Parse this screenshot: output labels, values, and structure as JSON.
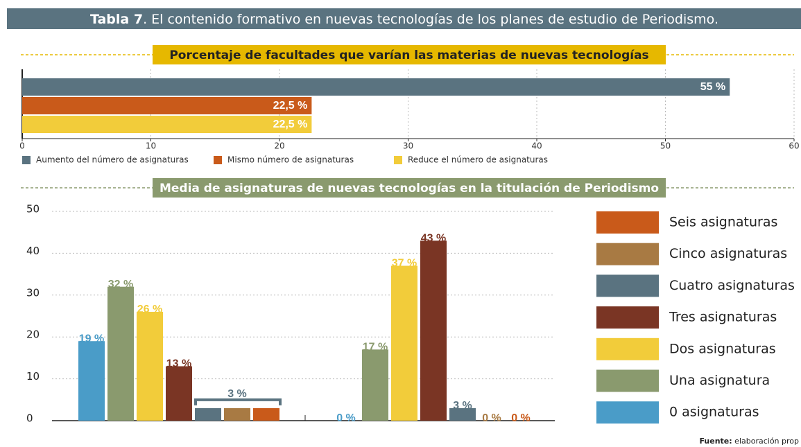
{
  "header": {
    "label": "Tabla 7",
    "title": ". El contenido formativo en nuevas tecnologías de los planes de estudio de Periodismo."
  },
  "chart_data": [
    {
      "type": "hbar",
      "title": "Porcentaje de facultades que varían las materias de nuevas tecnologías",
      "series": [
        {
          "name": "Aumento del número de asignaturas",
          "color": "#5a7380",
          "values": [
            55
          ],
          "value_labels": [
            "55 %"
          ]
        },
        {
          "name": "Mismo número de asignaturas",
          "color": "#c95a1a",
          "values": [
            22.5
          ],
          "value_labels": [
            "22,5 %"
          ]
        },
        {
          "name": "Reduce el número de asignaturas",
          "color": "#f2cc3a",
          "values": [
            22.5
          ],
          "value_labels": [
            "22,5 %"
          ]
        }
      ],
      "xlim": [
        0,
        60
      ],
      "xticks": [
        0,
        10,
        20,
        30,
        40,
        50,
        60
      ],
      "grid": true
    },
    {
      "type": "bar",
      "title": "Media de asignaturas de nuevas tecnologías en la titulación de Periodismo",
      "categories": [
        null,
        null
      ],
      "series": [
        {
          "name": "0 asignaturas",
          "color": "#4a9cc8",
          "values": [
            19,
            0
          ],
          "value_labels": [
            "19 %",
            "0 %"
          ]
        },
        {
          "name": "Una asignatura",
          "color": "#8a9a6e",
          "values": [
            32,
            17
          ],
          "value_labels": [
            "32 %",
            "17 %"
          ]
        },
        {
          "name": "Dos asignaturas",
          "color": "#f2cc3a",
          "values": [
            26,
            37
          ],
          "value_labels": [
            "26 %",
            "37 %"
          ]
        },
        {
          "name": "Tres asignaturas",
          "color": "#7a3524",
          "values": [
            13,
            43
          ],
          "value_labels": [
            "13 %",
            "43 %"
          ]
        },
        {
          "name": "Cuatro asignaturas",
          "color": "#5a7380",
          "values": [
            3,
            3
          ],
          "value_labels": [
            null,
            "3 %"
          ]
        },
        {
          "name": "Cinco asignaturas",
          "color": "#a87a43",
          "values": [
            3,
            0
          ],
          "value_labels": [
            "3 %",
            "0 %"
          ]
        },
        {
          "name": "Seis asignaturas",
          "color": "#c95a1a",
          "values": [
            3,
            0
          ],
          "value_labels": [
            null,
            "0 %"
          ]
        }
      ],
      "ylim": [
        0,
        50
      ],
      "yticks": [
        0,
        10,
        20,
        30,
        40,
        50
      ],
      "grid": true
    }
  ],
  "footer": {
    "label": "Fuente:",
    "text": "elaboración prop"
  }
}
